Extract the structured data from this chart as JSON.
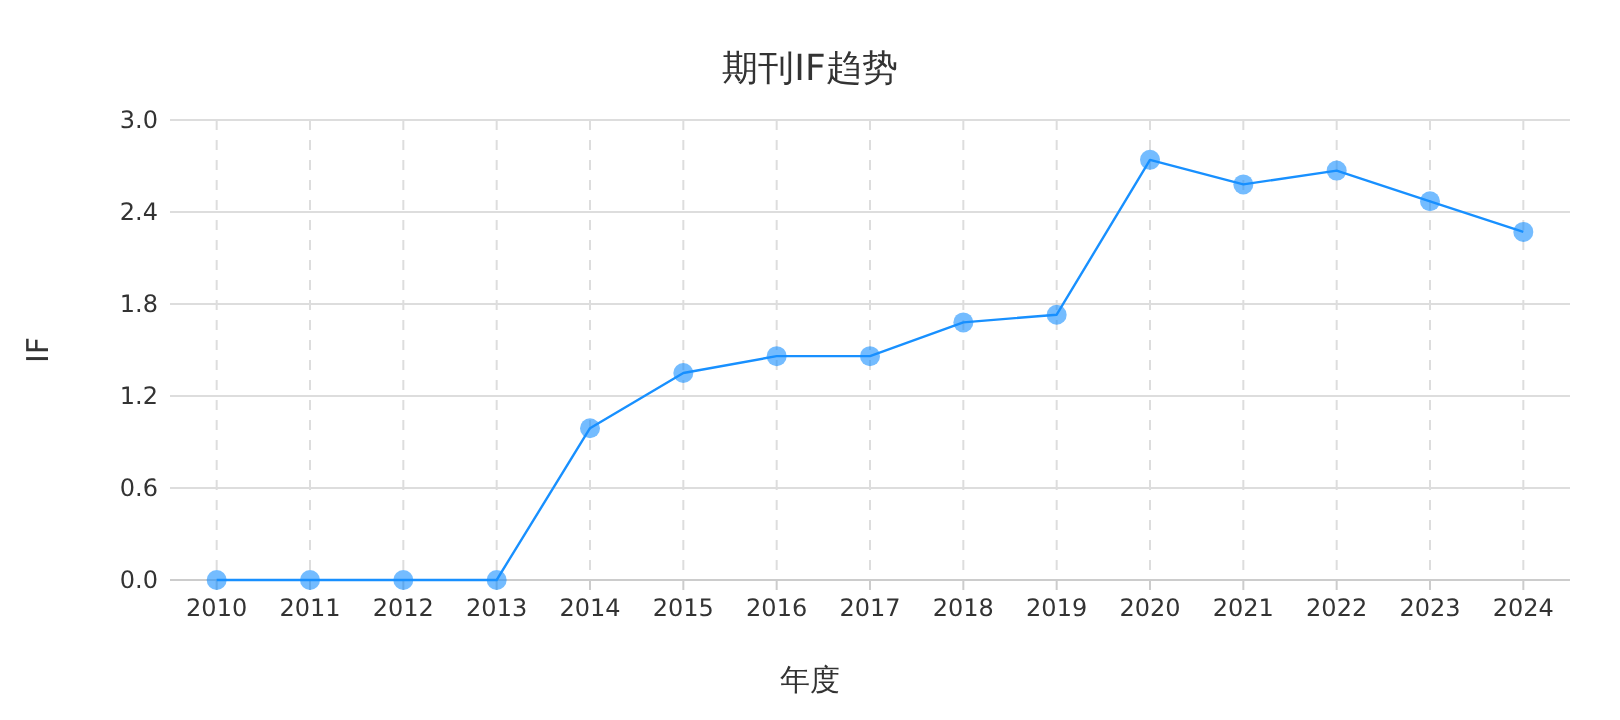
{
  "chart_data": {
    "type": "line",
    "title": "期刊IF趋势",
    "xlabel": "年度",
    "ylabel": "IF",
    "categories": [
      "2010",
      "2011",
      "2012",
      "2013",
      "2014",
      "2015",
      "2016",
      "2017",
      "2018",
      "2019",
      "2020",
      "2021",
      "2022",
      "2023",
      "2024"
    ],
    "series": [
      {
        "color": "#1890ff",
        "values": [
          0,
          0,
          0,
          0,
          0.99,
          1.35,
          1.46,
          1.46,
          1.68,
          1.73,
          2.74,
          2.58,
          2.67,
          2.47,
          2.27
        ]
      }
    ],
    "ylim": [
      0,
      3
    ],
    "yticks": [
      {
        "value": 0,
        "label": "0.0"
      },
      {
        "value": 0.6,
        "label": "0.6"
      },
      {
        "value": 1.2,
        "label": "1.2"
      },
      {
        "value": 1.8,
        "label": "1.8"
      },
      {
        "value": 2.4,
        "label": "2.4"
      },
      {
        "value": 3,
        "label": "3.0"
      }
    ],
    "grid": true,
    "marker": "circle",
    "line_style": "solid"
  }
}
